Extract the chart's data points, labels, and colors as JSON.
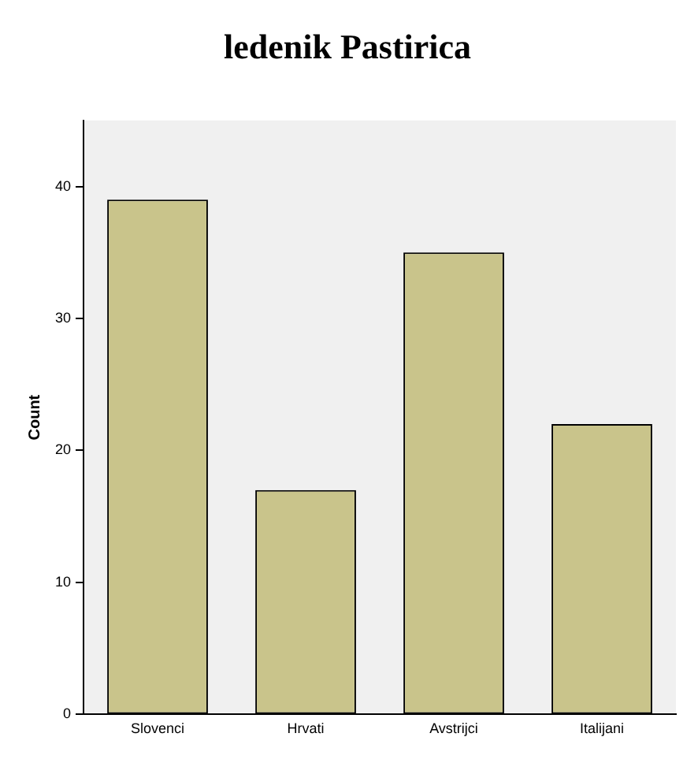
{
  "chart_data": {
    "type": "bar",
    "title": "ledenik Pastirica",
    "ylabel": "Count",
    "categories": [
      "Slovenci",
      "Hrvati",
      "Avstrijci",
      "Italijani"
    ],
    "values": [
      39,
      17,
      35,
      22
    ],
    "color": "#c9c48b",
    "ylim": [
      0,
      45
    ],
    "yticks": [
      0,
      10,
      20,
      30,
      40
    ],
    "grid": false,
    "legend": false
  }
}
